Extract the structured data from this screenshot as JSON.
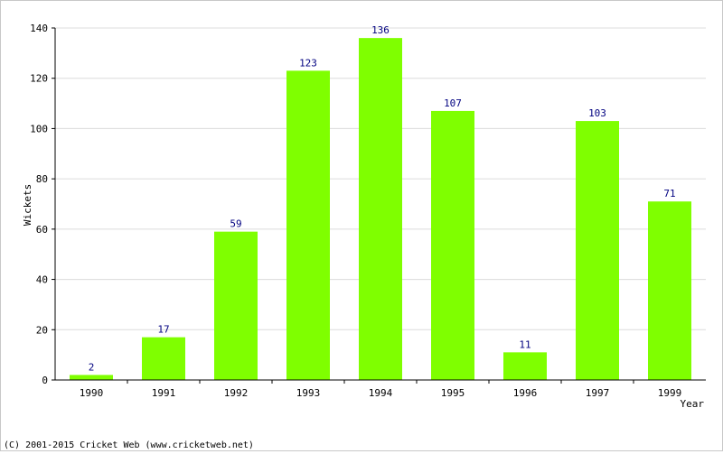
{
  "chart_data": {
    "type": "bar",
    "title": "",
    "xlabel": "Year",
    "ylabel": "Wickets",
    "ylim": [
      0,
      140
    ],
    "yticks": [
      0,
      20,
      40,
      60,
      80,
      100,
      120,
      140
    ],
    "grid": true,
    "categories": [
      "1990",
      "1991",
      "1992",
      "1993",
      "1994",
      "1995",
      "1996",
      "1997",
      "1999"
    ],
    "values": [
      2,
      17,
      59,
      123,
      136,
      107,
      11,
      103,
      71
    ],
    "bar_color": "#7fff00",
    "label_color": "#000080"
  },
  "footer": {
    "copyright": "(C) 2001-2015 Cricket Web (www.cricketweb.net)"
  }
}
